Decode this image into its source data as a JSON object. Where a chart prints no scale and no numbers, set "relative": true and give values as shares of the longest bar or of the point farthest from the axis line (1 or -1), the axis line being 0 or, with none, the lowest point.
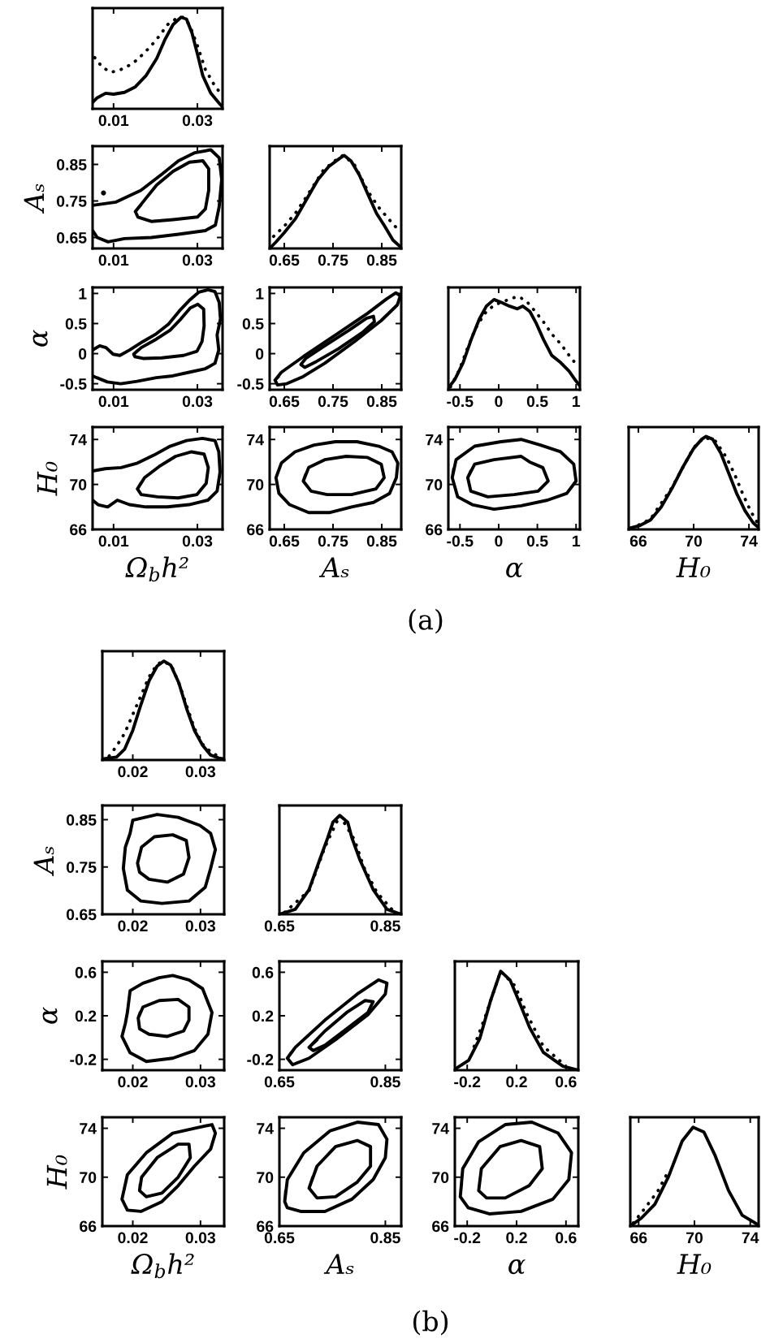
{
  "chart_data": [
    {
      "type": "line",
      "relative": true,
      "xlim": [
        0.005,
        0.036
      ],
      "xticks": [
        0.01,
        0.03
      ],
      "series": [
        {
          "color": "#000000",
          "line_style": "solid",
          "x": [
            0.005,
            0.0061,
            0.0081,
            0.01,
            0.0126,
            0.0152,
            0.0177,
            0.0203,
            0.0223,
            0.0242,
            0.0261,
            0.0274,
            0.0287,
            0.03,
            0.0313,
            0.0332,
            0.0352,
            0.036
          ],
          "values": [
            0.07,
            0.12,
            0.17,
            0.16,
            0.18,
            0.24,
            0.36,
            0.55,
            0.76,
            0.92,
            1.0,
            0.98,
            0.83,
            0.6,
            0.36,
            0.17,
            0.06,
            0.02
          ]
        },
        {
          "color": "#000000",
          "line_style": "dotted",
          "x": [
            0.0055,
            0.0074,
            0.0094,
            0.0113,
            0.0132,
            0.0152,
            0.0171,
            0.019,
            0.021,
            0.0229,
            0.0248,
            0.0265,
            0.0281,
            0.03,
            0.0319,
            0.0339,
            0.0358
          ],
          "values": [
            0.56,
            0.45,
            0.4,
            0.42,
            0.46,
            0.52,
            0.6,
            0.69,
            0.8,
            0.92,
            0.98,
            1.0,
            0.92,
            0.69,
            0.43,
            0.27,
            0.15
          ]
        }
      ]
    },
    {
      "type": "line",
      "ylabel": "Aₛ",
      "xlim": [
        0.005,
        0.036
      ],
      "xticks": [
        0.01,
        0.03
      ],
      "ylim": [
        0.62,
        0.9
      ],
      "yticks": [
        0.65,
        0.75,
        0.85
      ],
      "series": [
        {
          "color": "#000000",
          "line_style": "solid",
          "x": [
            0.005,
            0.0106,
            0.0165,
            0.0216,
            0.0255,
            0.0294,
            0.0332,
            0.0352,
            0.0358,
            0.0352,
            0.0343,
            0.0319,
            0.0255,
            0.019,
            0.0126,
            0.0087,
            0.0061,
            0.005
          ],
          "values": [
            0.738,
            0.747,
            0.779,
            0.824,
            0.86,
            0.882,
            0.89,
            0.868,
            0.809,
            0.735,
            0.684,
            0.669,
            0.659,
            0.65,
            0.647,
            0.638,
            0.65,
            0.669
          ]
        },
        {
          "color": "#000000",
          "line_style": "solid",
          "x": [
            0.0152,
            0.0177,
            0.0203,
            0.0242,
            0.0281,
            0.0313,
            0.0327,
            0.0327,
            0.0319,
            0.03,
            0.0242,
            0.019,
            0.0158,
            0.0152,
            0.0165
          ],
          "values": [
            0.721,
            0.757,
            0.794,
            0.831,
            0.856,
            0.86,
            0.838,
            0.779,
            0.728,
            0.706,
            0.699,
            0.694,
            0.706,
            0.721,
            0.739
          ]
        },
        {
          "type": "scatter",
          "marker": "circle",
          "color": "#000000",
          "x": [
            0.0076
          ],
          "values": [
            0.772
          ]
        }
      ]
    },
    {
      "type": "line",
      "relative": true,
      "xlim": [
        0.62,
        0.89
      ],
      "xticks": [
        0.65,
        0.75,
        0.85
      ],
      "series": [
        {
          "color": "#000000",
          "line_style": "solid",
          "x": [
            0.62,
            0.633,
            0.65,
            0.673,
            0.696,
            0.719,
            0.741,
            0.764,
            0.773,
            0.787,
            0.804,
            0.821,
            0.839,
            0.856,
            0.873,
            0.89
          ],
          "values": [
            0,
            0.07,
            0.17,
            0.32,
            0.53,
            0.74,
            0.88,
            0.97,
            1.0,
            0.94,
            0.79,
            0.59,
            0.38,
            0.24,
            0.09,
            0.01
          ]
        },
        {
          "color": "#000000",
          "line_style": "dotted",
          "x": [
            0.628,
            0.65,
            0.673,
            0.696,
            0.73,
            0.753,
            0.77,
            0.793,
            0.821,
            0.844,
            0.867,
            0.884
          ],
          "values": [
            0.13,
            0.24,
            0.38,
            0.56,
            0.84,
            0.94,
            1.0,
            0.91,
            0.62,
            0.44,
            0.3,
            0.2
          ]
        }
      ]
    },
    {
      "type": "line",
      "ylabel": "α",
      "xlim": [
        0.005,
        0.036
      ],
      "xticks": [
        0.01,
        0.03
      ],
      "ylim": [
        -0.6,
        1.1
      ],
      "yticks": [
        -0.5,
        0,
        0.5,
        1
      ],
      "series": [
        {
          "color": "#000000",
          "line_style": "solid",
          "x": [
            0.005,
            0.0067,
            0.0082,
            0.0099,
            0.0115,
            0.0138,
            0.017,
            0.0202,
            0.0231,
            0.0257,
            0.028,
            0.0303,
            0.0325,
            0.0342,
            0.0352,
            0.0355,
            0.0347,
            0.0351,
            0.0342,
            0.0319,
            0.028,
            0.0241,
            0.0202,
            0.0156,
            0.0117,
            0.0085,
            0.006,
            0.005
          ],
          "values": [
            0.06,
            0.13,
            0.1,
            -0.01,
            -0.03,
            0.06,
            0.2,
            0.33,
            0.49,
            0.71,
            0.88,
            1.02,
            1.06,
            1.03,
            0.85,
            0.58,
            0.31,
            0.06,
            -0.16,
            -0.25,
            -0.31,
            -0.37,
            -0.4,
            -0.46,
            -0.5,
            -0.47,
            -0.4,
            -0.37
          ]
        },
        {
          "color": "#000000",
          "line_style": "solid",
          "x": [
            0.0148,
            0.0166,
            0.0202,
            0.0235,
            0.0261,
            0.0283,
            0.0301,
            0.0315,
            0.0316,
            0.0311,
            0.0299,
            0.0267,
            0.0215,
            0.017,
            0.0151,
            0.0148,
            0.0157
          ],
          "values": [
            -0.01,
            0.1,
            0.24,
            0.39,
            0.58,
            0.76,
            0.82,
            0.74,
            0.46,
            0.2,
            0.04,
            -0.03,
            -0.07,
            -0.08,
            -0.05,
            -0.01,
            0.05
          ]
        }
      ]
    },
    {
      "type": "line",
      "xlim": [
        0.62,
        0.89
      ],
      "xticks": [
        0.65,
        0.75,
        0.85
      ],
      "ylim": [
        -0.6,
        1.1
      ],
      "yticks": [
        -0.5,
        0,
        0.5,
        1
      ],
      "series": [
        {
          "color": "#000000",
          "line_style": "solid",
          "x": [
            0.631,
            0.644,
            0.689,
            0.755,
            0.821,
            0.86,
            0.879,
            0.888,
            0.882,
            0.849,
            0.794,
            0.733,
            0.689,
            0.655,
            0.636,
            0.631,
            0.638
          ],
          "values": [
            -0.44,
            -0.31,
            -0.05,
            0.31,
            0.67,
            0.91,
            1.01,
            0.96,
            0.81,
            0.55,
            0.2,
            -0.16,
            -0.38,
            -0.5,
            -0.52,
            -0.44,
            -0.38
          ]
        },
        {
          "color": "#000000",
          "line_style": "solid",
          "x": [
            0.684,
            0.694,
            0.733,
            0.783,
            0.819,
            0.833,
            0.835,
            0.81,
            0.761,
            0.716,
            0.692,
            0.684,
            0.689
          ],
          "values": [
            -0.18,
            -0.08,
            0.13,
            0.39,
            0.59,
            0.62,
            0.53,
            0.35,
            0.08,
            -0.13,
            -0.23,
            -0.18,
            -0.13
          ]
        }
      ]
    },
    {
      "type": "line",
      "relative": true,
      "xlim": [
        -0.65,
        1.05
      ],
      "xticks": [
        -0.5,
        0,
        0.5,
        1
      ],
      "series": [
        {
          "color": "#000000",
          "line_style": "solid",
          "x": [
            -0.65,
            -0.566,
            -0.46,
            -0.355,
            -0.25,
            -0.158,
            -0.06,
            0.031,
            0.137,
            0.242,
            0.312,
            0.404,
            0.488,
            0.579,
            0.685,
            0.804,
            0.91,
            0.994,
            1.05
          ],
          "values": [
            0.02,
            0.11,
            0.29,
            0.54,
            0.76,
            0.9,
            0.97,
            0.94,
            0.9,
            0.87,
            0.9,
            0.84,
            0.71,
            0.54,
            0.37,
            0.29,
            0.2,
            0.1,
            0.04
          ]
        },
        {
          "color": "#000000",
          "line_style": "dotted",
          "x": [
            -0.622,
            -0.51,
            -0.411,
            -0.299,
            -0.179,
            -0.06,
            0.067,
            0.193,
            0.263,
            0.362,
            0.474,
            0.579,
            0.685,
            0.804,
            0.91,
            1.015
          ],
          "values": [
            0.03,
            0.21,
            0.43,
            0.66,
            0.82,
            0.91,
            0.95,
            0.99,
            1.0,
            0.95,
            0.84,
            0.73,
            0.6,
            0.49,
            0.37,
            0.26
          ]
        }
      ]
    },
    {
      "type": "line",
      "ylabel": "H₀",
      "xlabel": "Ω$_{b}$h²",
      "annotations": [
        "(a)"
      ],
      "xlim": [
        0.005,
        0.036
      ],
      "xticks": [
        0.01,
        0.03
      ],
      "ylim": [
        66,
        75.1
      ],
      "yticks": [
        66,
        70,
        74
      ],
      "series": [
        {
          "color": "#000000",
          "line_style": "solid",
          "x": [
            0.005,
            0.008,
            0.0118,
            0.0157,
            0.0196,
            0.0235,
            0.0274,
            0.0312,
            0.0342,
            0.0351,
            0.0354,
            0.0347,
            0.0325,
            0.028,
            0.0228,
            0.0177,
            0.0138,
            0.0109,
            0.0086,
            0.0063,
            0.005
          ],
          "values": [
            71.2,
            71.4,
            71.5,
            71.9,
            72.6,
            73.4,
            73.9,
            74.1,
            73.9,
            72.9,
            71.1,
            69.4,
            68.6,
            68.2,
            68.0,
            68.0,
            68.2,
            68.6,
            68.0,
            68.2,
            68.6
          ]
        },
        {
          "color": "#000000",
          "line_style": "solid",
          "x": [
            0.0157,
            0.0174,
            0.0209,
            0.0248,
            0.0286,
            0.0316,
            0.0326,
            0.0321,
            0.0299,
            0.0254,
            0.0205,
            0.0166,
            0.0157,
            0.0165
          ],
          "values": [
            69.6,
            70.6,
            71.6,
            72.5,
            72.9,
            72.7,
            71.5,
            70.1,
            69.1,
            68.8,
            68.9,
            69.1,
            69.6,
            70.1
          ]
        }
      ]
    },
    {
      "type": "line",
      "xlabel": "Aₛ",
      "xlim": [
        0.62,
        0.89
      ],
      "xticks": [
        0.65,
        0.75,
        0.85
      ],
      "ylim": [
        66,
        75.1
      ],
      "yticks": [
        66,
        70,
        74
      ],
      "series": [
        {
          "color": "#000000",
          "line_style": "solid",
          "x": [
            0.633,
            0.644,
            0.672,
            0.711,
            0.755,
            0.799,
            0.844,
            0.871,
            0.883,
            0.88,
            0.866,
            0.833,
            0.788,
            0.744,
            0.7,
            0.661,
            0.639,
            0.633,
            0.638
          ],
          "values": [
            70.6,
            71.9,
            72.9,
            73.5,
            73.8,
            73.8,
            73.4,
            72.9,
            71.9,
            70.6,
            69.2,
            68.4,
            68.0,
            67.5,
            67.5,
            68.2,
            69.2,
            70.6,
            71.2
          ]
        },
        {
          "color": "#000000",
          "line_style": "solid",
          "x": [
            0.689,
            0.7,
            0.733,
            0.777,
            0.821,
            0.849,
            0.855,
            0.838,
            0.788,
            0.738,
            0.705,
            0.689,
            0.694
          ],
          "values": [
            70.3,
            71.5,
            72.2,
            72.5,
            72.4,
            71.8,
            70.6,
            69.6,
            69.1,
            69.1,
            69.4,
            70.3,
            70.9
          ]
        }
      ]
    },
    {
      "type": "line",
      "xlabel": "α",
      "xlim": [
        -0.65,
        1.05
      ],
      "xticks": [
        -0.5,
        0,
        0.5,
        1
      ],
      "ylim": [
        66,
        75.1
      ],
      "yticks": [
        66,
        70,
        74
      ],
      "series": [
        {
          "color": "#000000",
          "line_style": "solid",
          "x": [
            -0.6,
            -0.55,
            -0.31,
            0.03,
            0.29,
            0.54,
            0.8,
            0.97,
            1.0,
            0.88,
            0.63,
            0.29,
            -0.06,
            -0.34,
            -0.53,
            -0.6,
            -0.58
          ],
          "values": [
            70.6,
            72.2,
            73.4,
            73.8,
            74.0,
            73.5,
            72.9,
            71.8,
            70.3,
            69.2,
            68.6,
            68.1,
            67.8,
            68.2,
            68.9,
            70.6,
            71.4
          ]
        },
        {
          "color": "#000000",
          "line_style": "solid",
          "x": [
            -0.4,
            -0.31,
            -0.06,
            0.29,
            0.4,
            0.57,
            0.64,
            0.51,
            0.2,
            -0.14,
            -0.36,
            -0.4,
            -0.36
          ],
          "values": [
            70.6,
            71.8,
            72.2,
            72.5,
            72.0,
            71.5,
            70.3,
            69.4,
            69.1,
            68.9,
            69.4,
            70.6,
            71.2
          ]
        }
      ]
    },
    {
      "type": "line",
      "relative": true,
      "xlabel": "H₀",
      "xlim": [
        65.3,
        74.7
      ],
      "xticks": [
        66,
        70,
        74
      ],
      "series": [
        {
          "color": "#000000",
          "line_style": "solid",
          "x": [
            65.3,
            66.08,
            66.87,
            67.65,
            68.43,
            69.22,
            70.0,
            70.59,
            70.9,
            71.37,
            71.96,
            72.55,
            73.13,
            73.72,
            74.31,
            74.7
          ],
          "values": [
            0.01,
            0.04,
            0.1,
            0.24,
            0.44,
            0.67,
            0.87,
            0.97,
            1.0,
            0.97,
            0.82,
            0.6,
            0.38,
            0.2,
            0.07,
            0.02
          ]
        },
        {
          "color": "#000000",
          "line_style": "dotted",
          "x": [
            65.5,
            66.87,
            68.43,
            70.0,
            70.78,
            71.57,
            72.35,
            72.94,
            73.53,
            74.11,
            74.62
          ],
          "values": [
            0.01,
            0.11,
            0.45,
            0.88,
            0.99,
            0.95,
            0.78,
            0.6,
            0.39,
            0.2,
            0.07
          ]
        }
      ]
    },
    {
      "type": "line",
      "relative": true,
      "xlim": [
        0.0155,
        0.0335
      ],
      "xticks": [
        0.02,
        0.03
      ],
      "series": [
        {
          "color": "#000000",
          "line_style": "solid",
          "x": [
            0.0155,
            0.0176,
            0.0188,
            0.02,
            0.0212,
            0.0224,
            0.0236,
            0.0246,
            0.0256,
            0.0268,
            0.028,
            0.0291,
            0.0303,
            0.0315,
            0.0327,
            0.0335
          ],
          "values": [
            0.01,
            0.03,
            0.11,
            0.3,
            0.56,
            0.8,
            0.95,
            1.0,
            0.96,
            0.78,
            0.51,
            0.3,
            0.15,
            0.05,
            0.02,
            0.01
          ]
        },
        {
          "color": "#000000",
          "line_style": "dotted",
          "x": [
            0.0165,
            0.0176,
            0.0188,
            0.02,
            0.0212,
            0.0224,
            0.0236,
            0.0246,
            0.0258,
            0.0269,
            0.028,
            0.0291,
            0.0303,
            0.0317,
            0.0329
          ],
          "values": [
            0.04,
            0.14,
            0.27,
            0.46,
            0.65,
            0.84,
            0.97,
            1.0,
            0.94,
            0.76,
            0.54,
            0.32,
            0.16,
            0.07,
            0.03
          ]
        }
      ]
    },
    {
      "type": "line",
      "ylabel": "Aₛ",
      "xlim": [
        0.0155,
        0.0335
      ],
      "xticks": [
        0.02,
        0.03
      ],
      "ylim": [
        0.65,
        0.88
      ],
      "yticks": [
        0.65,
        0.75,
        0.85
      ],
      "series": [
        {
          "color": "#000000",
          "line_style": "solid",
          "x": [
            0.02,
            0.0236,
            0.0267,
            0.0299,
            0.0315,
            0.0322,
            0.0315,
            0.0307,
            0.0283,
            0.0243,
            0.0212,
            0.0192,
            0.0186,
            0.0189,
            0.0196,
            0.02,
            0.0218
          ],
          "values": [
            0.849,
            0.861,
            0.855,
            0.838,
            0.821,
            0.787,
            0.747,
            0.707,
            0.678,
            0.673,
            0.678,
            0.701,
            0.747,
            0.792,
            0.821,
            0.849,
            0.855
          ]
        },
        {
          "color": "#000000",
          "line_style": "solid",
          "x": [
            0.0207,
            0.0213,
            0.0232,
            0.0259,
            0.0279,
            0.0283,
            0.0275,
            0.0251,
            0.0224,
            0.021,
            0.0207,
            0.021
          ],
          "values": [
            0.758,
            0.792,
            0.814,
            0.818,
            0.806,
            0.77,
            0.735,
            0.718,
            0.724,
            0.739,
            0.758,
            0.775
          ]
        }
      ]
    },
    {
      "type": "line",
      "relative": true,
      "xlim": [
        0.65,
        0.88
      ],
      "xticks": [
        0.65,
        0.85
      ],
      "series": [
        {
          "color": "#000000",
          "line_style": "solid",
          "x": [
            0.65,
            0.68,
            0.706,
            0.726,
            0.741,
            0.751,
            0.764,
            0.779,
            0.787,
            0.802,
            0.827,
            0.853,
            0.88
          ],
          "values": [
            0,
            0.05,
            0.25,
            0.55,
            0.77,
            0.93,
            1.0,
            0.93,
            0.77,
            0.55,
            0.25,
            0.05,
            0
          ]
        },
        {
          "color": "#000000",
          "line_style": "dotted",
          "x": [
            0.66,
            0.706,
            0.736,
            0.764,
            0.792,
            0.809,
            0.834,
            0.864
          ],
          "values": [
            0.02,
            0.24,
            0.68,
            1.0,
            0.75,
            0.48,
            0.22,
            0.04
          ]
        }
      ]
    },
    {
      "type": "line",
      "ylabel": "α",
      "xlim": [
        0.0155,
        0.0335
      ],
      "xticks": [
        0.02,
        0.03
      ],
      "ylim": [
        -0.3,
        0.7
      ],
      "yticks": [
        -0.2,
        0.2,
        0.6
      ],
      "series": [
        {
          "color": "#000000",
          "line_style": "solid",
          "x": [
            0.0192,
            0.0196,
            0.0215,
            0.0239,
            0.0259,
            0.0283,
            0.0303,
            0.0317,
            0.0311,
            0.0291,
            0.0259,
            0.022,
            0.0196,
            0.0184,
            0.0189,
            0.0192,
            0.0194
          ],
          "values": [
            0.23,
            0.43,
            0.5,
            0.55,
            0.57,
            0.53,
            0.45,
            0.23,
            0.03,
            -0.12,
            -0.19,
            -0.22,
            -0.14,
            0.01,
            0.13,
            0.23,
            0.33
          ]
        },
        {
          "color": "#000000",
          "line_style": "solid",
          "x": [
            0.0208,
            0.0215,
            0.0239,
            0.0267,
            0.0283,
            0.0283,
            0.0275,
            0.0251,
            0.0224,
            0.021,
            0.0208,
            0.0211
          ],
          "values": [
            0.18,
            0.28,
            0.34,
            0.35,
            0.28,
            0.16,
            0.06,
            0.01,
            0.03,
            0.08,
            0.18,
            0.23
          ]
        }
      ]
    },
    {
      "type": "line",
      "xlim": [
        0.65,
        0.88
      ],
      "xticks": [
        0.65,
        0.85
      ],
      "ylim": [
        -0.3,
        0.7
      ],
      "yticks": [
        -0.2,
        0.2,
        0.6
      ],
      "series": [
        {
          "color": "#000000",
          "line_style": "solid",
          "x": [
            0.665,
            0.68,
            0.736,
            0.797,
            0.837,
            0.853,
            0.85,
            0.817,
            0.756,
            0.706,
            0.675,
            0.665,
            0.672
          ],
          "values": [
            -0.19,
            -0.09,
            0.16,
            0.4,
            0.53,
            0.5,
            0.4,
            0.21,
            -0.02,
            -0.19,
            -0.25,
            -0.19,
            -0.14
          ]
        },
        {
          "color": "#000000",
          "line_style": "solid",
          "x": [
            0.706,
            0.736,
            0.777,
            0.812,
            0.827,
            0.817,
            0.777,
            0.736,
            0.714,
            0.706,
            0.721
          ],
          "values": [
            -0.09,
            0.06,
            0.23,
            0.34,
            0.33,
            0.23,
            0.08,
            -0.07,
            -0.12,
            -0.09,
            -0.02
          ]
        }
      ]
    },
    {
      "type": "line",
      "relative": true,
      "xlim": [
        -0.3,
        0.7
      ],
      "xticks": [
        -0.2,
        0.2,
        0.6
      ],
      "series": [
        {
          "color": "#000000",
          "line_style": "solid",
          "x": [
            -0.3,
            -0.188,
            -0.098,
            -0.009,
            0.071,
            0.148,
            0.215,
            0.306,
            0.417,
            0.575,
            0.7
          ],
          "values": [
            0.01,
            0.1,
            0.32,
            0.71,
            1.0,
            0.91,
            0.71,
            0.43,
            0.18,
            0.04,
            0
          ]
        },
        {
          "color": "#000000",
          "line_style": "dotted",
          "x": [
            -0.144,
            -0.054,
            0.071,
            0.189,
            0.283,
            0.417,
            0.592
          ],
          "values": [
            0.24,
            0.54,
            1.0,
            0.85,
            0.57,
            0.24,
            0.05
          ]
        }
      ]
    },
    {
      "type": "line",
      "ylabel": "H₀",
      "xlabel": "Ω$_{b}$h²",
      "annotations": [
        "(b)"
      ],
      "xlim": [
        0.0155,
        0.0335
      ],
      "xticks": [
        0.02,
        0.03
      ],
      "ylim": [
        66,
        74.9
      ],
      "yticks": [
        66,
        70,
        74
      ],
      "series": [
        {
          "color": "#000000",
          "line_style": "solid",
          "x": [
            0.0184,
            0.0192,
            0.022,
            0.0259,
            0.0291,
            0.0317,
            0.0322,
            0.0315,
            0.0291,
            0.0267,
            0.0243,
            0.0212,
            0.0192,
            0.0184,
            0.0188
          ],
          "values": [
            68.2,
            70.2,
            72.0,
            73.6,
            74.0,
            74.3,
            73.6,
            72.3,
            70.9,
            69.3,
            68.0,
            67.2,
            67.3,
            68.2,
            69.2
          ]
        },
        {
          "color": "#000000",
          "line_style": "solid",
          "x": [
            0.021,
            0.0213,
            0.0236,
            0.0267,
            0.0283,
            0.0285,
            0.0267,
            0.0243,
            0.022,
            0.021,
            0.0211
          ],
          "values": [
            68.9,
            70.0,
            71.6,
            72.7,
            72.7,
            71.6,
            70.0,
            68.7,
            68.4,
            68.9,
            69.4
          ]
        }
      ]
    },
    {
      "type": "line",
      "xlabel": "Aₛ",
      "xlim": [
        0.65,
        0.88
      ],
      "xticks": [
        0.65,
        0.85
      ],
      "ylim": [
        66,
        74.9
      ],
      "yticks": [
        66,
        70,
        74
      ],
      "series": [
        {
          "color": "#000000",
          "line_style": "solid",
          "x": [
            0.66,
            0.665,
            0.696,
            0.746,
            0.797,
            0.837,
            0.853,
            0.85,
            0.827,
            0.787,
            0.736,
            0.69,
            0.665,
            0.66,
            0.662
          ],
          "values": [
            68.0,
            69.8,
            72.0,
            73.8,
            74.5,
            74.3,
            73.1,
            71.6,
            69.8,
            68.2,
            67.2,
            67.2,
            67.5,
            68.0,
            68.9
          ]
        },
        {
          "color": "#000000",
          "line_style": "solid",
          "x": [
            0.706,
            0.721,
            0.756,
            0.797,
            0.822,
            0.822,
            0.797,
            0.756,
            0.721,
            0.706,
            0.713
          ],
          "values": [
            69.1,
            70.9,
            72.5,
            73.0,
            72.5,
            70.9,
            69.6,
            68.4,
            68.3,
            69.1,
            70.0
          ]
        }
      ]
    },
    {
      "type": "line",
      "xlabel": "α",
      "xlim": [
        -0.3,
        0.7
      ],
      "xticks": [
        -0.2,
        0.2,
        0.6
      ],
      "ylim": [
        66,
        74.9
      ],
      "yticks": [
        66,
        70,
        74
      ],
      "series": [
        {
          "color": "#000000",
          "line_style": "solid",
          "x": [
            -0.256,
            -0.236,
            -0.107,
            0.108,
            0.323,
            0.537,
            0.645,
            0.623,
            0.494,
            0.237,
            -0.021,
            -0.192,
            -0.256,
            -0.246
          ],
          "values": [
            68.4,
            70.7,
            72.9,
            74.3,
            74.5,
            73.6,
            72.0,
            69.8,
            68.2,
            67.2,
            67.0,
            67.5,
            68.4,
            69.5
          ]
        },
        {
          "color": "#000000",
          "line_style": "solid",
          "x": [
            -0.107,
            -0.085,
            0.066,
            0.237,
            0.387,
            0.408,
            0.301,
            0.108,
            -0.043,
            -0.107,
            -0.096
          ],
          "values": [
            68.9,
            70.7,
            72.5,
            73.0,
            72.5,
            70.7,
            69.3,
            68.3,
            68.3,
            68.9,
            69.8
          ]
        }
      ]
    },
    {
      "type": "line",
      "relative": true,
      "xlabel": "H₀",
      "xlim": [
        65.4,
        74.6
      ],
      "xticks": [
        66,
        70,
        74
      ],
      "series": [
        {
          "color": "#000000",
          "line_style": "solid",
          "x": [
            65.4,
            66.19,
            67.16,
            68.14,
            69.12,
            69.9,
            70.68,
            71.46,
            72.44,
            73.42,
            74.6
          ],
          "values": [
            0,
            0.08,
            0.22,
            0.5,
            0.86,
            1.0,
            0.95,
            0.72,
            0.36,
            0.11,
            0.01
          ]
        },
        {
          "color": "#000000",
          "line_style": "dotted",
          "x": [
            65.6,
            66.39,
            67.36,
            68.0
          ],
          "values": [
            0.03,
            0.17,
            0.35,
            0.52
          ]
        }
      ]
    }
  ]
}
